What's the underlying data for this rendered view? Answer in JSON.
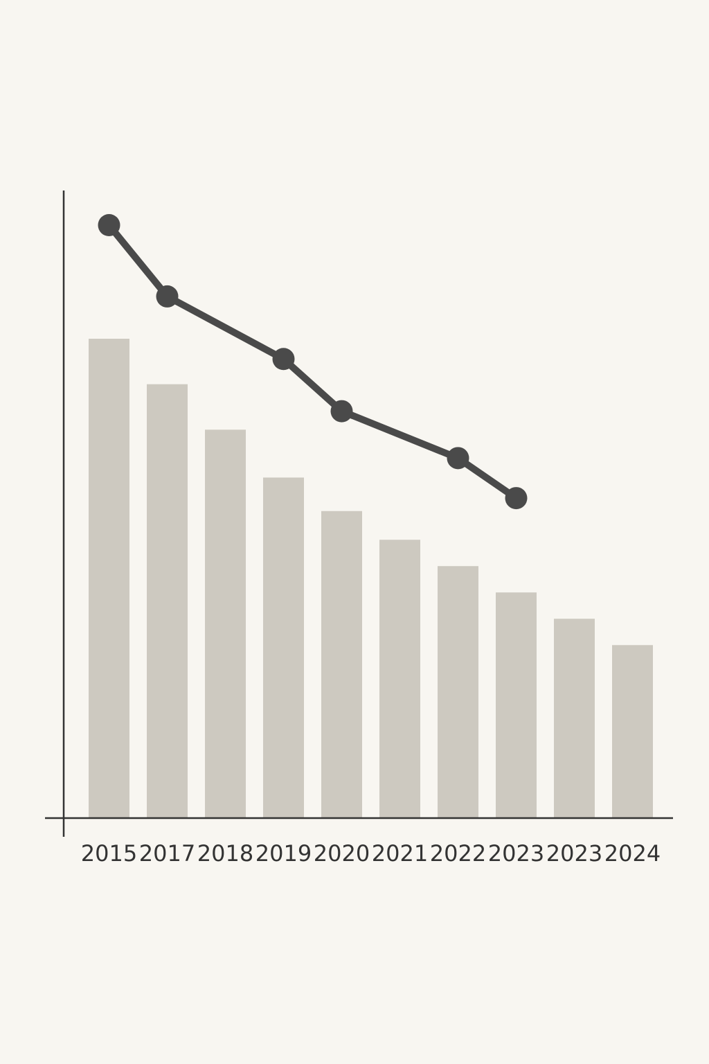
{
  "chart_data": {
    "type": "bar",
    "categories": [
      "2015",
      "2017",
      "2018",
      "2019",
      "2020",
      "2021",
      "2022",
      "2023",
      "2023",
      "2024"
    ],
    "values": [
      100,
      90.5,
      81,
      71,
      64,
      58,
      52.5,
      47,
      41.5,
      36
    ],
    "ylim": [
      0,
      100
    ],
    "grid": false,
    "bar_color": "#cdc9c0",
    "line_series": {
      "type": "line",
      "x": [
        "2015",
        "2017",
        "2019",
        "2020",
        "2022",
        "2023"
      ],
      "y": [
        100,
        79.5,
        61.5,
        46.5,
        33,
        21.5
      ],
      "ylim": [
        0,
        100
      ],
      "color": "#4a4a4a"
    },
    "axis_color": "#333333",
    "background": "#f8f6f1"
  }
}
